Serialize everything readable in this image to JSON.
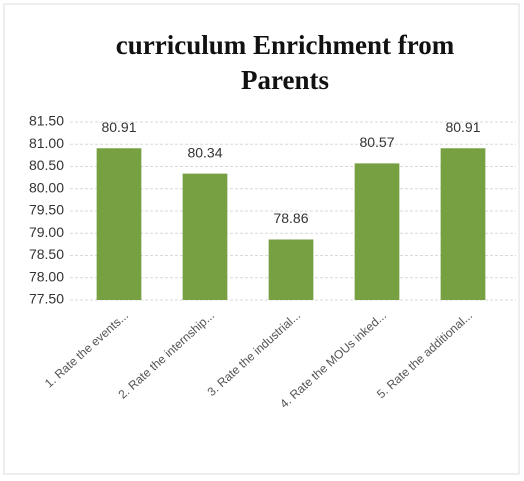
{
  "chart_data": {
    "type": "bar",
    "title": "curriculum Enrichment from Parents",
    "categories": [
      "1. Rate the events...",
      "2. Rate the internship...",
      "3. Rate the industrial...",
      "4. Rate the MOUs inked...",
      "5. Rate the additional..."
    ],
    "values": [
      80.91,
      80.34,
      78.86,
      80.57,
      80.91
    ],
    "color": "#77a043",
    "ylim": [
      77.5,
      81.5
    ],
    "yticks": [
      {
        "value": 77.5,
        "label": "77.50"
      },
      {
        "value": 78,
        "label": "78.00"
      },
      {
        "value": 78.5,
        "label": "78.50"
      },
      {
        "value": 79,
        "label": "79.00"
      },
      {
        "value": 79.5,
        "label": "79.50"
      },
      {
        "value": 80,
        "label": "80.00"
      },
      {
        "value": 80.5,
        "label": "80.50"
      },
      {
        "value": 81,
        "label": "81.00"
      },
      {
        "value": 81.5,
        "label": "81.50"
      }
    ],
    "grid": true
  }
}
